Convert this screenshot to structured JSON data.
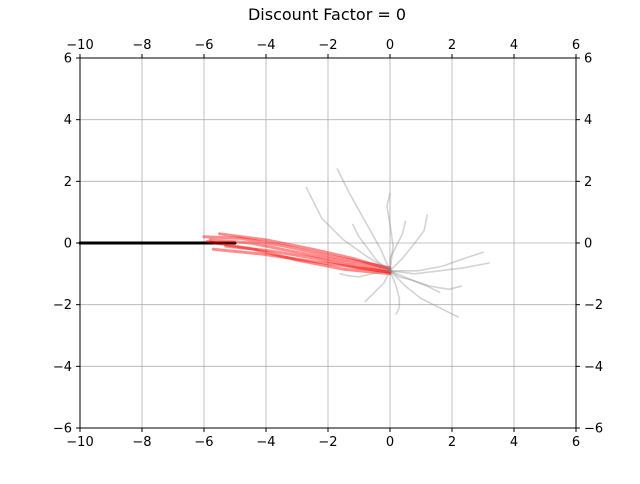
{
  "chart_data": {
    "type": "line",
    "title": "Discount Factor = 0",
    "xlabel": "",
    "ylabel": "",
    "xlim": [
      -10,
      6
    ],
    "ylim": [
      -6,
      6
    ],
    "grid": true,
    "x_ticks": [
      -10,
      -8,
      -6,
      -4,
      -2,
      0,
      2,
      4,
      6
    ],
    "y_ticks": [
      -6,
      -4,
      -2,
      0,
      2,
      4,
      6
    ],
    "x_tick_labels": [
      "−10",
      "−8",
      "−6",
      "−4",
      "−2",
      "0",
      "2",
      "4",
      "6"
    ],
    "y_tick_labels": [
      "−6",
      "−4",
      "−2",
      "0",
      "2",
      "4",
      "6"
    ],
    "colors": {
      "reference_path": "#000000",
      "trajectory": "#ff0000",
      "scatter_path": "#808080",
      "grid": "#b0b0b0",
      "axes": "#000000"
    },
    "series": [
      {
        "name": "reference path",
        "style": "black-thick",
        "x": [
          -10,
          -5
        ],
        "y": [
          0,
          0
        ]
      },
      {
        "name": "trajectory 1",
        "style": "red",
        "x": [
          -5.8,
          -4.5,
          -3,
          -1.5,
          0
        ],
        "y": [
          0.1,
          0.0,
          -0.3,
          -0.6,
          -0.9
        ]
      },
      {
        "name": "trajectory 2",
        "style": "red",
        "x": [
          -5.5,
          -4,
          -2.5,
          -1.2,
          0
        ],
        "y": [
          0.3,
          0.1,
          -0.2,
          -0.5,
          -0.85
        ]
      },
      {
        "name": "trajectory 3",
        "style": "red",
        "x": [
          -5.7,
          -4.2,
          -2.8,
          -1.4,
          0
        ],
        "y": [
          -0.2,
          -0.35,
          -0.55,
          -0.75,
          -0.95
        ]
      },
      {
        "name": "trajectory 4",
        "style": "red",
        "x": [
          -6,
          -4.8,
          -3.4,
          -1.8,
          0
        ],
        "y": [
          0.2,
          0.15,
          -0.1,
          -0.45,
          -0.8
        ]
      },
      {
        "name": "trajectory 5",
        "style": "red",
        "x": [
          -5.3,
          -3.9,
          -2.4,
          -1,
          0
        ],
        "y": [
          -0.1,
          -0.25,
          -0.5,
          -0.8,
          -0.95
        ]
      },
      {
        "name": "trajectory 6",
        "style": "red",
        "x": [
          -5.9,
          -4.4,
          -3,
          -1.5,
          0
        ],
        "y": [
          0.05,
          -0.2,
          -0.55,
          -0.85,
          -1.0
        ]
      },
      {
        "name": "spread 1",
        "style": "gray",
        "x": [
          0,
          -0.3,
          -0.8,
          -1.3,
          -1.7
        ],
        "y": [
          -0.9,
          -0.2,
          0.7,
          1.6,
          2.4
        ]
      },
      {
        "name": "spread 2",
        "style": "gray",
        "x": [
          0,
          0.8,
          1.6,
          2.4,
          3.2
        ],
        "y": [
          -0.9,
          -1.0,
          -0.9,
          -0.8,
          -0.65
        ]
      },
      {
        "name": "spread 3",
        "style": "gray",
        "x": [
          0,
          0.5,
          1.0,
          1.6,
          2.2
        ],
        "y": [
          -0.9,
          -1.4,
          -1.8,
          -2.1,
          -2.4
        ]
      },
      {
        "name": "spread 4",
        "style": "gray",
        "x": [
          0,
          -0.8,
          -1.5,
          -2.2,
          -2.7
        ],
        "y": [
          -0.9,
          -0.4,
          0.1,
          0.8,
          1.8
        ]
      },
      {
        "name": "spread 5",
        "style": "gray",
        "x": [
          0,
          0.1,
          0.0,
          -0.1,
          0.0
        ],
        "y": [
          -0.9,
          -0.1,
          0.6,
          1.2,
          1.6
        ]
      },
      {
        "name": "spread 6",
        "style": "gray",
        "x": [
          0,
          0.7,
          1.3,
          1.9,
          2.3
        ],
        "y": [
          -0.9,
          -1.2,
          -1.4,
          -1.5,
          -1.4
        ]
      },
      {
        "name": "spread 7",
        "style": "gray",
        "x": [
          0,
          0.4,
          0.8,
          1.1,
          1.2
        ],
        "y": [
          -0.9,
          -0.5,
          0.0,
          0.4,
          0.9
        ]
      },
      {
        "name": "spread 8",
        "style": "gray",
        "x": [
          0,
          -0.6,
          -1.0,
          -1.4,
          -1.6
        ],
        "y": [
          -0.9,
          -1.0,
          -1.1,
          -1.05,
          -1.0
        ]
      },
      {
        "name": "spread 9",
        "style": "gray",
        "x": [
          0,
          0.2,
          0.3,
          0.3,
          0.2
        ],
        "y": [
          -0.9,
          -1.4,
          -1.8,
          -2.1,
          -2.3
        ]
      },
      {
        "name": "spread 10",
        "style": "gray",
        "x": [
          0,
          0.9,
          1.7,
          2.4,
          3.0
        ],
        "y": [
          -0.9,
          -0.9,
          -0.75,
          -0.5,
          -0.3
        ]
      },
      {
        "name": "spread 11",
        "style": "gray",
        "x": [
          0,
          -0.2,
          -0.5,
          -0.7,
          -0.8
        ],
        "y": [
          -0.9,
          -1.3,
          -1.6,
          -1.8,
          -1.9
        ]
      },
      {
        "name": "spread 12",
        "style": "gray",
        "x": [
          0,
          0.3,
          0.7,
          1.2,
          1.6
        ],
        "y": [
          -0.9,
          -1.1,
          -1.2,
          -1.4,
          -1.6
        ]
      },
      {
        "name": "spread 13",
        "style": "gray",
        "x": [
          0,
          -0.4,
          -0.7,
          -1.0,
          -1.2
        ],
        "y": [
          -0.9,
          -0.6,
          -0.2,
          0.2,
          0.6
        ]
      },
      {
        "name": "spread 14",
        "style": "gray",
        "x": [
          0,
          0.0,
          0.2,
          0.4,
          0.5
        ],
        "y": [
          -0.9,
          -0.5,
          -0.1,
          0.3,
          0.7
        ]
      }
    ]
  }
}
